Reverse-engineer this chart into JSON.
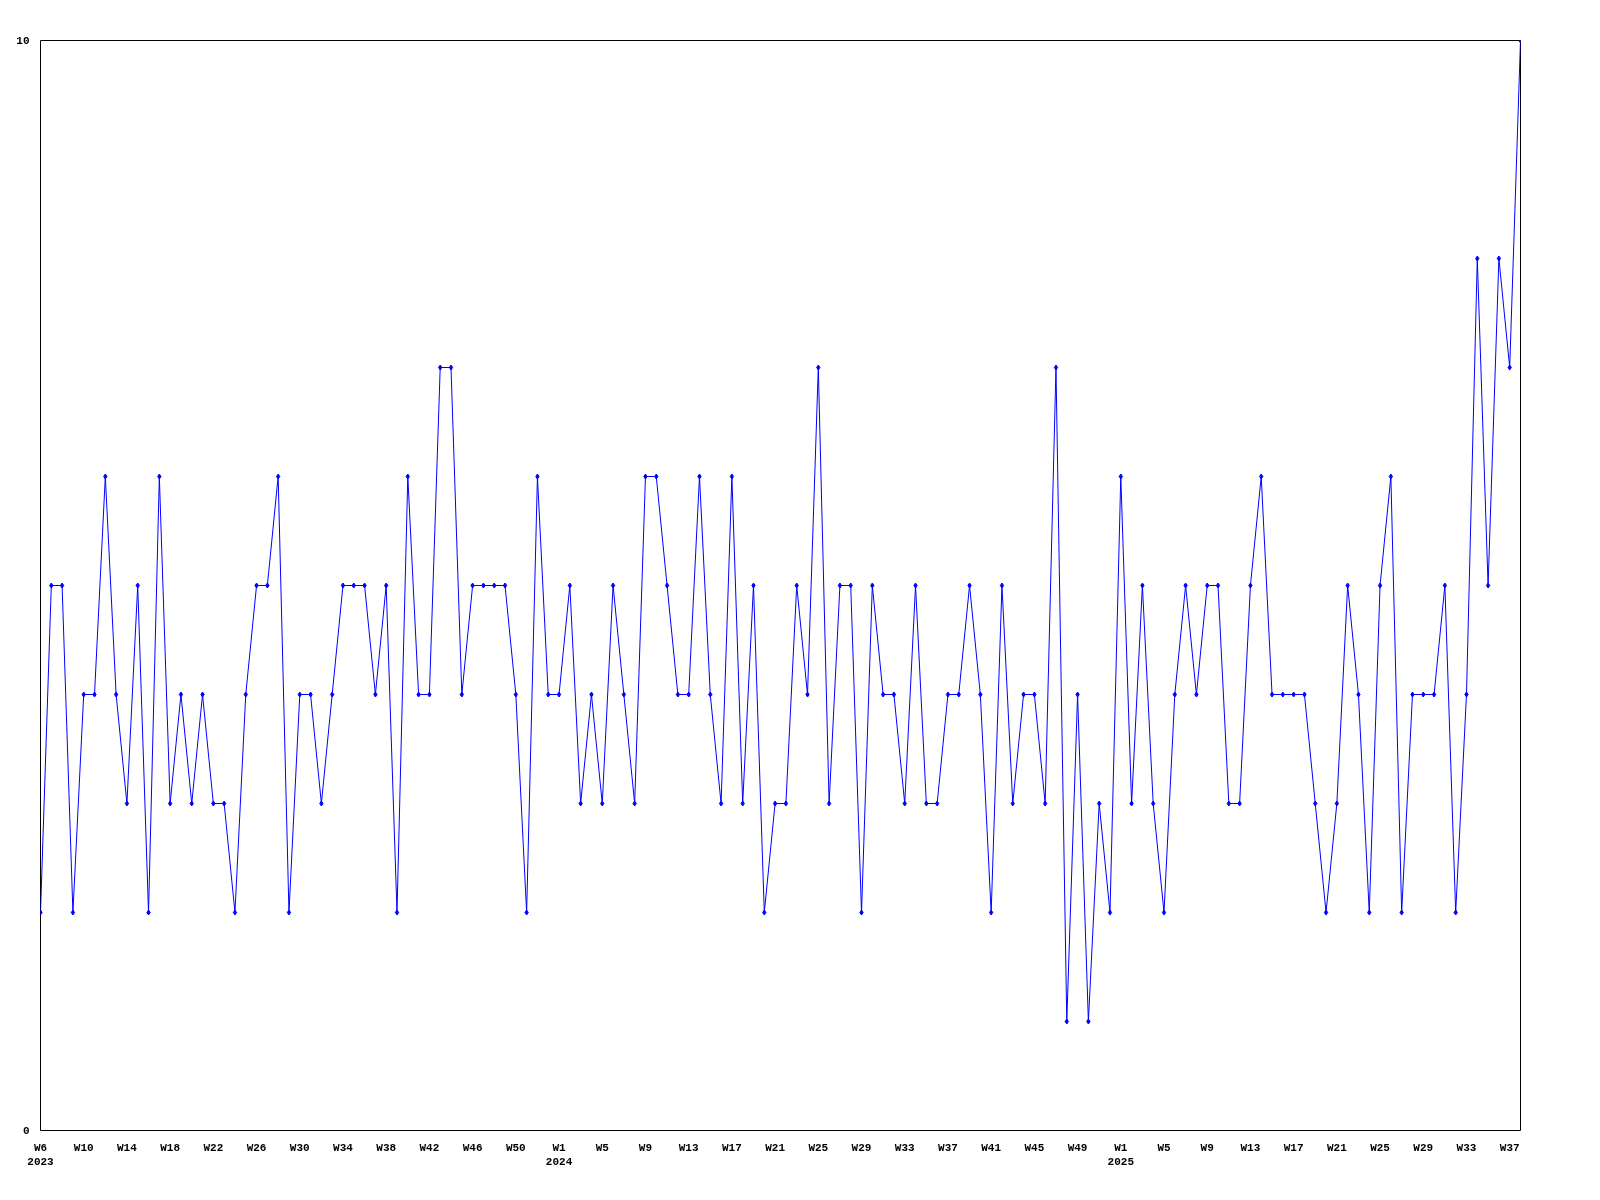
{
  "chart_data": {
    "type": "line",
    "color": "#0000ff",
    "marker": "diamond",
    "grid": false,
    "ylim": [
      0,
      10
    ],
    "yticks": [
      0,
      10
    ],
    "categories": [
      "W6\n2023",
      null,
      null,
      null,
      "W10",
      null,
      null,
      null,
      "W14",
      null,
      null,
      null,
      "W18",
      null,
      null,
      null,
      "W22",
      null,
      null,
      null,
      "W26",
      null,
      null,
      null,
      "W30",
      null,
      null,
      null,
      "W34",
      null,
      null,
      null,
      "W38",
      null,
      null,
      null,
      "W42",
      null,
      null,
      null,
      "W46",
      null,
      null,
      null,
      "W50",
      null,
      null,
      null,
      "W1\n2024",
      null,
      null,
      null,
      "W5",
      null,
      null,
      null,
      "W9",
      null,
      null,
      null,
      "W13",
      null,
      null,
      null,
      "W17",
      null,
      null,
      null,
      "W21",
      null,
      null,
      null,
      "W25",
      null,
      null,
      null,
      "W29",
      null,
      null,
      null,
      "W33",
      null,
      null,
      null,
      "W37",
      null,
      null,
      null,
      "W41",
      null,
      null,
      null,
      "W45",
      null,
      null,
      null,
      "W49",
      null,
      null,
      null,
      "W1\n2025",
      null,
      null,
      null,
      "W5",
      null,
      null,
      null,
      "W9",
      null,
      null,
      null,
      "W13",
      null,
      null,
      null,
      "W17",
      null,
      null,
      null,
      "W21",
      null,
      null,
      null,
      "W25",
      null,
      null,
      null,
      "W29",
      null,
      null,
      null,
      "W33",
      null,
      null,
      null,
      "W37",
      null
    ],
    "values": [
      2,
      5,
      5,
      2,
      4,
      4,
      6,
      4,
      3,
      5,
      2,
      6,
      3,
      4,
      3,
      4,
      3,
      3,
      2,
      4,
      5,
      5,
      6,
      2,
      4,
      4,
      3,
      4,
      5,
      5,
      5,
      4,
      5,
      2,
      6,
      4,
      4,
      7,
      7,
      4,
      5,
      5,
      5,
      5,
      4,
      2,
      6,
      4,
      4,
      5,
      3,
      4,
      3,
      5,
      4,
      3,
      6,
      6,
      5,
      4,
      4,
      6,
      4,
      3,
      6,
      3,
      5,
      2,
      3,
      3,
      5,
      4,
      7,
      3,
      5,
      5,
      2,
      5,
      4,
      4,
      3,
      5,
      3,
      3,
      4,
      4,
      5,
      4,
      2,
      5,
      3,
      4,
      4,
      3,
      7,
      1,
      4,
      1,
      3,
      2,
      6,
      3,
      5,
      3,
      2,
      4,
      5,
      4,
      5,
      5,
      3,
      3,
      5,
      6,
      4,
      4,
      4,
      4,
      3,
      2,
      3,
      5,
      4,
      2,
      5,
      6,
      2,
      4,
      4,
      4,
      5,
      2,
      4,
      8,
      5,
      8,
      7,
      10
    ]
  }
}
